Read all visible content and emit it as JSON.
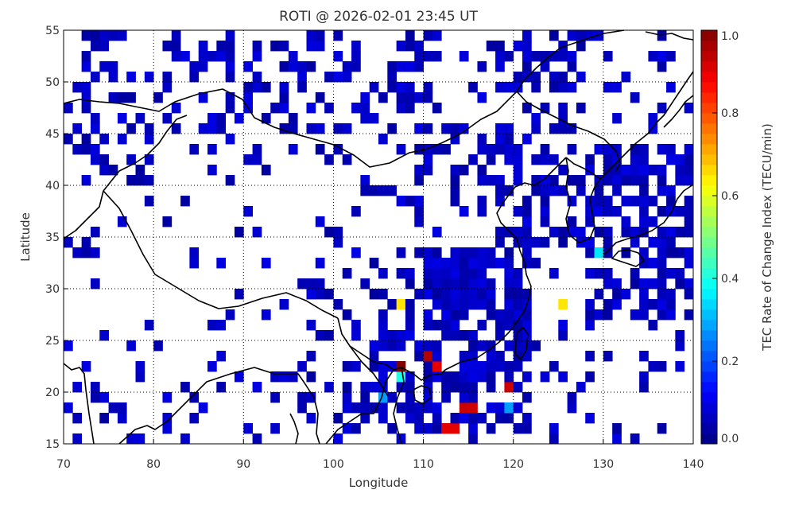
{
  "title": "ROTI @ 2026-02-01 23:45 UT",
  "colorbar": {
    "label": "TEC Rate of Change Index (TECU/min)",
    "ticks": [
      "0.0",
      "0.2",
      "0.4",
      "0.6",
      "0.8",
      "1.0"
    ]
  },
  "map": {
    "xlabel": "Longitude",
    "ylabel": "Latitude",
    "x_ticks": [
      "70",
      "80",
      "90",
      "100",
      "110",
      "120",
      "130",
      "140"
    ],
    "y_ticks": [
      "15",
      "20",
      "25",
      "30",
      "35",
      "40",
      "45",
      "50",
      "55"
    ]
  },
  "chart_data": {
    "type": "heatmap",
    "title": "ROTI @ 2026-02-01 23:45 UT",
    "xlabel": "Longitude",
    "ylabel": "Latitude",
    "xlim": [
      70,
      140
    ],
    "ylim": [
      15,
      55
    ],
    "grid": true,
    "colorbar_range": [
      0.0,
      1.0
    ],
    "cell_size_deg": 1,
    "notable_cells": [
      {
        "lon": 107.5,
        "lat": 22.5,
        "value": 1.0
      },
      {
        "lon": 110.5,
        "lat": 23.5,
        "value": 0.95
      },
      {
        "lon": 111.5,
        "lat": 22.5,
        "value": 0.9
      },
      {
        "lon": 119.5,
        "lat": 20.5,
        "value": 0.92
      },
      {
        "lon": 114.5,
        "lat": 18.5,
        "value": 0.93
      },
      {
        "lon": 115.5,
        "lat": 18.5,
        "value": 0.92
      },
      {
        "lon": 112.5,
        "lat": 16.5,
        "value": 0.9
      },
      {
        "lon": 113.5,
        "lat": 16.5,
        "value": 0.9
      },
      {
        "lon": 107.5,
        "lat": 28.5,
        "value": 0.65
      },
      {
        "lon": 125.5,
        "lat": 28.5,
        "value": 0.65
      },
      {
        "lon": 107.5,
        "lat": 21.5,
        "value": 0.4
      },
      {
        "lon": 129.5,
        "lat": 33.5,
        "value": 0.35
      },
      {
        "lon": 105.5,
        "lat": 19.5,
        "value": 0.28
      },
      {
        "lon": 119.5,
        "lat": 18.5,
        "value": 0.28
      }
    ]
  }
}
